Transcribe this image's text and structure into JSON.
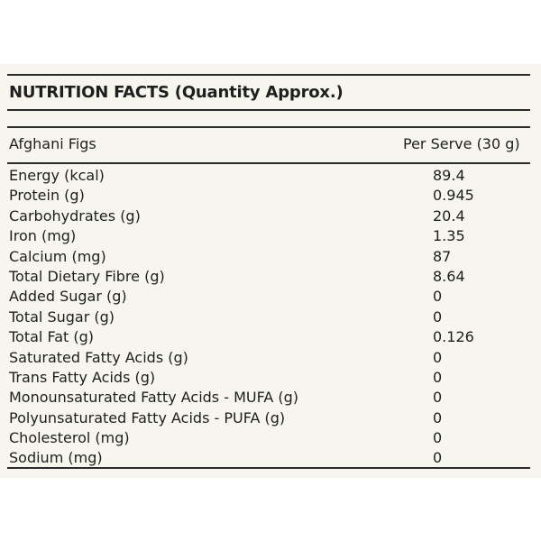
{
  "table": {
    "title": "NUTRITION FACTS (Quantity Approx.)",
    "product": "Afghani Figs",
    "serving_header": "Per Serve (30 g)",
    "rows": [
      {
        "label": "Energy (kcal)",
        "value": "89.4"
      },
      {
        "label": "Protein (g)",
        "value": "0.945"
      },
      {
        "label": "Carbohydrates (g)",
        "value": "20.4"
      },
      {
        "label": "Iron (mg)",
        "value": "1.35"
      },
      {
        "label": "Calcium (mg)",
        "value": "87"
      },
      {
        "label": "Total Dietary Fibre (g)",
        "value": "8.64"
      },
      {
        "label": "Added Sugar (g)",
        "value": "0"
      },
      {
        "label": "Total Sugar (g)",
        "value": "0"
      },
      {
        "label": "Total Fat (g)",
        "value": "0.126"
      },
      {
        "label": "Saturated Fatty Acids (g)",
        "value": "0"
      },
      {
        "label": "Trans Fatty Acids (g)",
        "value": "0"
      },
      {
        "label": "Monounsaturated Fatty Acids - MUFA (g)",
        "value": "0"
      },
      {
        "label": "Polyunsaturated Fatty Acids - PUFA (g)",
        "value": "0"
      },
      {
        "label": "Cholesterol (mg)",
        "value": "0"
      },
      {
        "label": "Sodium (mg)",
        "value": "0"
      }
    ]
  },
  "colors": {
    "background": "#f7f6ee",
    "text": "#1e1e1e",
    "rules": "#2a2a2a"
  }
}
